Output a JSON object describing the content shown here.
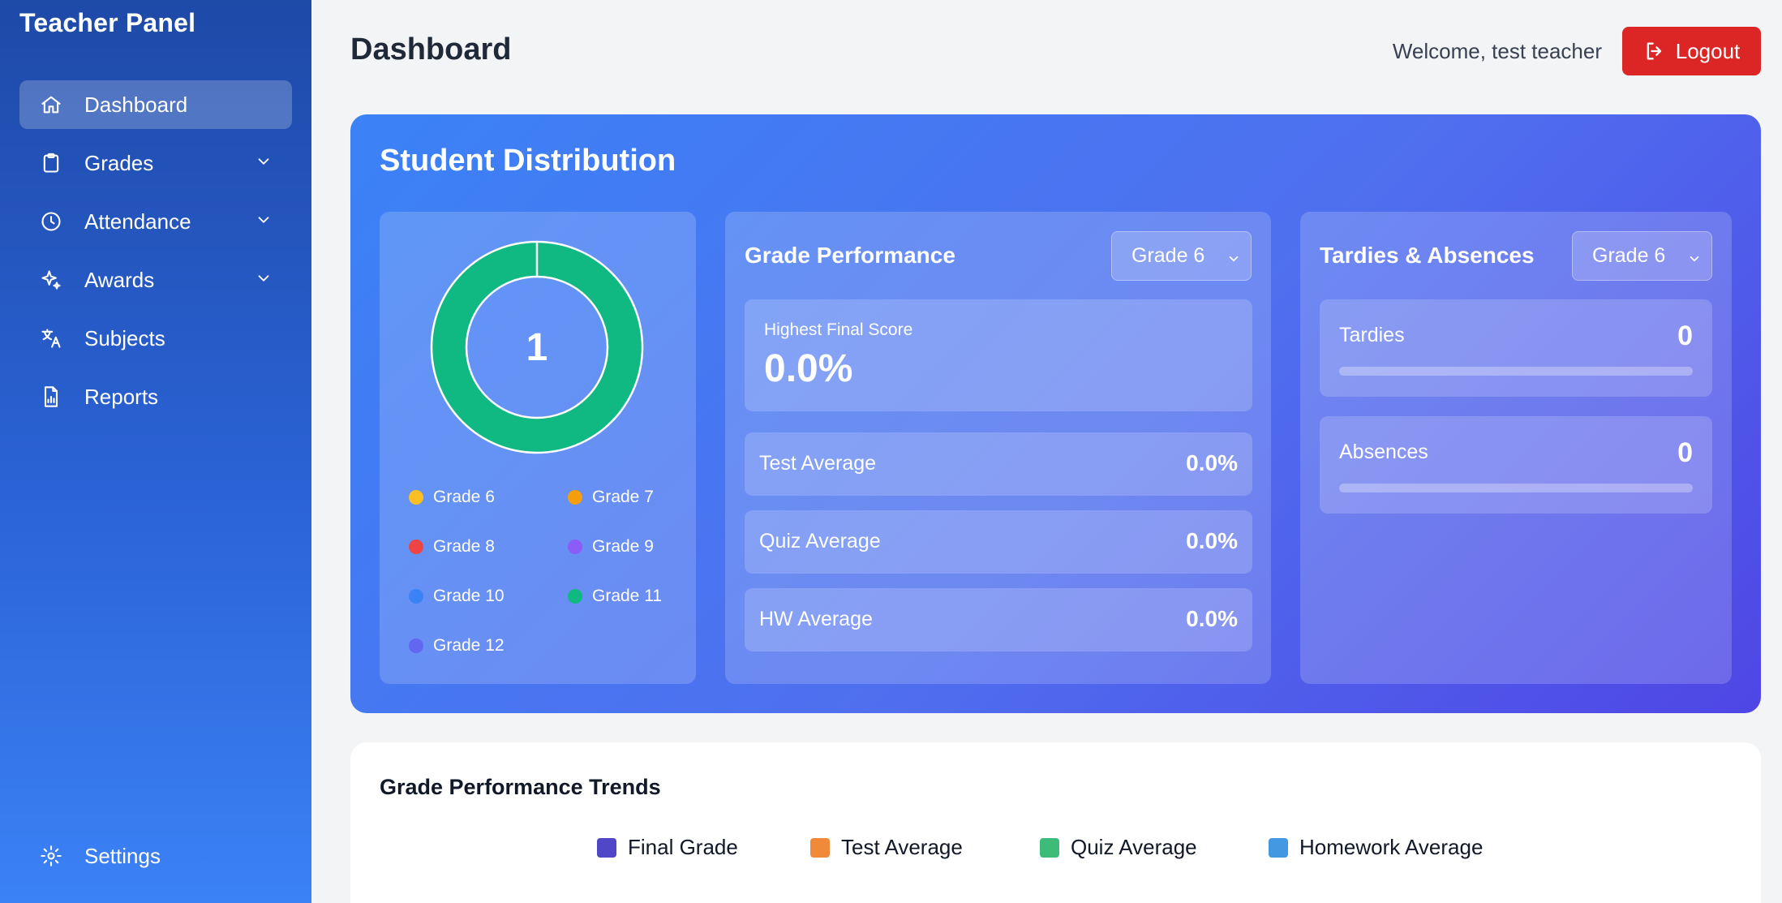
{
  "sidebar": {
    "brand": "Teacher Panel",
    "items": [
      {
        "label": "Dashboard",
        "icon": "home-icon"
      },
      {
        "label": "Grades",
        "icon": "clipboard-icon"
      },
      {
        "label": "Attendance",
        "icon": "clock-icon"
      },
      {
        "label": "Awards",
        "icon": "sparkles-icon"
      },
      {
        "label": "Subjects",
        "icon": "translate-icon"
      },
      {
        "label": "Reports",
        "icon": "report-icon"
      }
    ],
    "settings_label": "Settings"
  },
  "header": {
    "title": "Dashboard",
    "welcome": "Welcome, test teacher",
    "logout_label": "Logout"
  },
  "distribution": {
    "title": "Student Distribution",
    "total": "1",
    "segments": [
      {
        "label": "Grade 6",
        "value": 0,
        "color": "#fbbf24"
      },
      {
        "label": "Grade 7",
        "value": 0,
        "color": "#f59e0b"
      },
      {
        "label": "Grade 8",
        "value": 0,
        "color": "#ef4444"
      },
      {
        "label": "Grade 9",
        "value": 0,
        "color": "#8b5cf6"
      },
      {
        "label": "Grade 10",
        "value": 0,
        "color": "#3b82f6"
      },
      {
        "label": "Grade 11",
        "value": 1,
        "color": "#10b981"
      },
      {
        "label": "Grade 12",
        "value": 0,
        "color": "#6366f1"
      }
    ]
  },
  "grade_performance": {
    "title": "Grade Performance",
    "selected_grade": "Grade 6",
    "highest_label": "Highest Final Score",
    "highest_value": "0.0%",
    "rows": [
      {
        "label": "Test Average",
        "value": "0.0%"
      },
      {
        "label": "Quiz Average",
        "value": "0.0%"
      },
      {
        "label": "HW Average",
        "value": "0.0%"
      }
    ]
  },
  "tardies": {
    "title": "Tardies & Absences",
    "selected_grade": "Grade 6",
    "tardies_label": "Tardies",
    "tardies_value": "0",
    "tardies_progress": 0,
    "absences_label": "Absences",
    "absences_value": "0",
    "absences_progress": 0
  },
  "trends": {
    "title": "Grade Performance Trends",
    "legend": [
      {
        "label": "Final Grade",
        "color": "#4f46c8"
      },
      {
        "label": "Test Average",
        "color": "#f0893a"
      },
      {
        "label": "Quiz Average",
        "color": "#3dbb78"
      },
      {
        "label": "Homework Average",
        "color": "#4299e1"
      }
    ]
  }
}
